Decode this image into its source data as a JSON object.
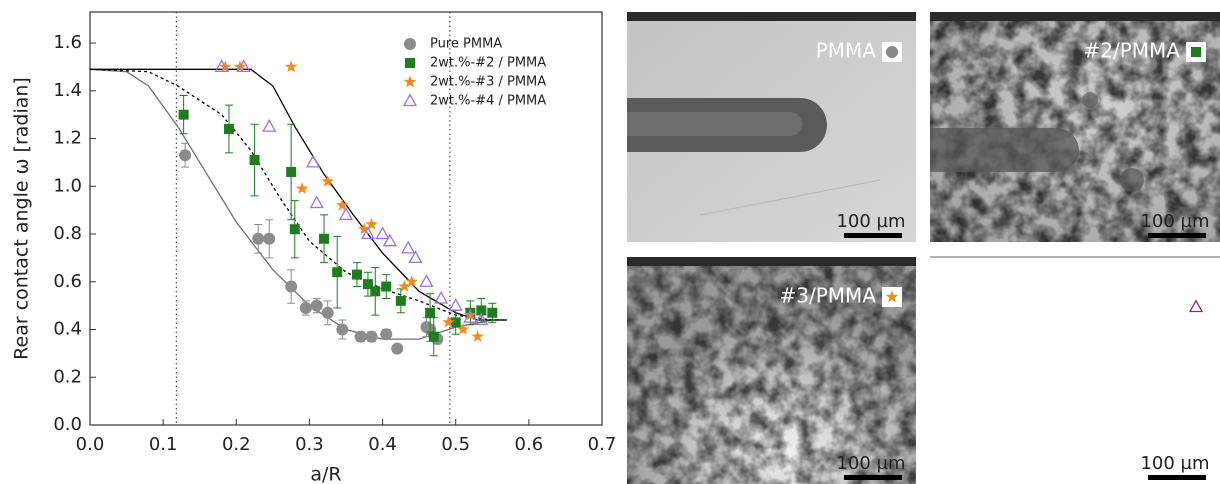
{
  "chart_data": {
    "type": "scatter",
    "xlabel": "a/R",
    "ylabel": "Rear contact angle ω [radian]",
    "xlim": [
      0,
      0.7
    ],
    "ylim": [
      0,
      1.73
    ],
    "xticks": [
      {
        "value": 0,
        "label": "0.0"
      },
      0.1,
      0.2,
      0.3,
      0.4,
      0.5,
      0.6,
      0.7
    ],
    "yticks": [
      {
        "value": 0,
        "label": "0.0"
      },
      0.2,
      0.4,
      0.6,
      0.8,
      {
        "value": 1,
        "label": "1.0"
      },
      1.2,
      1.4,
      1.6
    ],
    "legend": "upper right",
    "vlines": [
      0.118,
      0.492
    ],
    "series": [
      {
        "name": "Pure PMMA",
        "color": "#8c8c8c",
        "marker": "circle",
        "x": [
          0.13,
          0.23,
          0.245,
          0.275,
          0.295,
          0.31,
          0.325,
          0.345,
          0.37,
          0.385,
          0.405,
          0.42,
          0.46,
          0.465,
          0.475
        ],
        "values": [
          1.13,
          0.78,
          0.78,
          0.58,
          0.49,
          0.5,
          0.47,
          0.4,
          0.37,
          0.37,
          0.38,
          0.32,
          0.41,
          0.4,
          0.36
        ],
        "errors": [
          0.05,
          0.06,
          0.08,
          0.07,
          0.03,
          0.03,
          0.05,
          0.04,
          0.02,
          0.02,
          0.02,
          0.01,
          0.04,
          0.05,
          0.02
        ]
      },
      {
        "name": "2wt.%-#2 / PMMA",
        "color": "#1e7d1e",
        "marker": "square",
        "x": [
          0.128,
          0.19,
          0.225,
          0.275,
          0.28,
          0.32,
          0.338,
          0.365,
          0.38,
          0.39,
          0.405,
          0.425,
          0.465,
          0.47,
          0.5,
          0.52,
          0.535,
          0.55
        ],
        "values": [
          1.3,
          1.24,
          1.11,
          1.06,
          0.82,
          0.78,
          0.64,
          0.63,
          0.59,
          0.56,
          0.58,
          0.52,
          0.47,
          0.37,
          0.43,
          0.47,
          0.48,
          0.47
        ],
        "errors": [
          0.08,
          0.1,
          0.15,
          0.2,
          0.12,
          0.1,
          0.15,
          0.05,
          0.05,
          0.1,
          0.05,
          0.05,
          0.08,
          0.08,
          0.05,
          0.05,
          0.05,
          0.04
        ]
      },
      {
        "name": "2wt.%-#3 / PMMA",
        "color": "#f28c1f",
        "marker": "star",
        "x": [
          0.185,
          0.205,
          0.275,
          0.29,
          0.325,
          0.345,
          0.375,
          0.385,
          0.43,
          0.44,
          0.49,
          0.51,
          0.52,
          0.53
        ],
        "values": [
          1.5,
          1.5,
          1.5,
          0.99,
          1.02,
          0.92,
          0.82,
          0.84,
          0.58,
          0.6,
          0.43,
          0.4,
          0.46,
          0.37
        ]
      },
      {
        "name": "2wt.%-#4 / PMMA",
        "color": "#a070e0",
        "marker": "triangle",
        "x": [
          0.18,
          0.21,
          0.245,
          0.305,
          0.31,
          0.35,
          0.38,
          0.4,
          0.41,
          0.435,
          0.445,
          0.46,
          0.48,
          0.5,
          0.52,
          0.535
        ],
        "values": [
          1.5,
          1.5,
          1.25,
          1.1,
          0.93,
          0.88,
          0.8,
          0.8,
          0.77,
          0.74,
          0.7,
          0.6,
          0.53,
          0.5,
          0.45,
          0.44
        ]
      }
    ],
    "curves": [
      {
        "color": "#707070",
        "style": "solid",
        "x": [
          0,
          0.05,
          0.08,
          0.12,
          0.16,
          0.2,
          0.25,
          0.3,
          0.35,
          0.4,
          0.45,
          0.5,
          0.55,
          0.57
        ],
        "values": [
          1.49,
          1.48,
          1.42,
          1.25,
          1.05,
          0.85,
          0.65,
          0.5,
          0.4,
          0.36,
          0.36,
          0.41,
          0.44,
          0.44
        ]
      },
      {
        "color": "#000000",
        "style": "dashed",
        "x": [
          0,
          0.08,
          0.12,
          0.18,
          0.22,
          0.26,
          0.3,
          0.35,
          0.4,
          0.45,
          0.5,
          0.55,
          0.57
        ],
        "values": [
          1.49,
          1.48,
          1.42,
          1.3,
          1.15,
          0.95,
          0.77,
          0.64,
          0.57,
          0.52,
          0.46,
          0.44,
          0.44
        ]
      },
      {
        "color": "#000000",
        "style": "solid",
        "x": [
          0,
          0.22,
          0.25,
          0.28,
          0.32,
          0.36,
          0.4,
          0.45,
          0.5,
          0.53,
          0.57
        ],
        "values": [
          1.49,
          1.49,
          1.42,
          1.25,
          1.05,
          0.88,
          0.72,
          0.56,
          0.47,
          0.44,
          0.44
        ]
      }
    ]
  },
  "panels": [
    {
      "label": "PMMA",
      "scale": "100 µm"
    },
    {
      "label": "#2/PMMA",
      "scale": "100 µm"
    },
    {
      "label": "#3/PMMA",
      "scale": "100 µm"
    },
    {
      "scale": "100 µm"
    }
  ]
}
